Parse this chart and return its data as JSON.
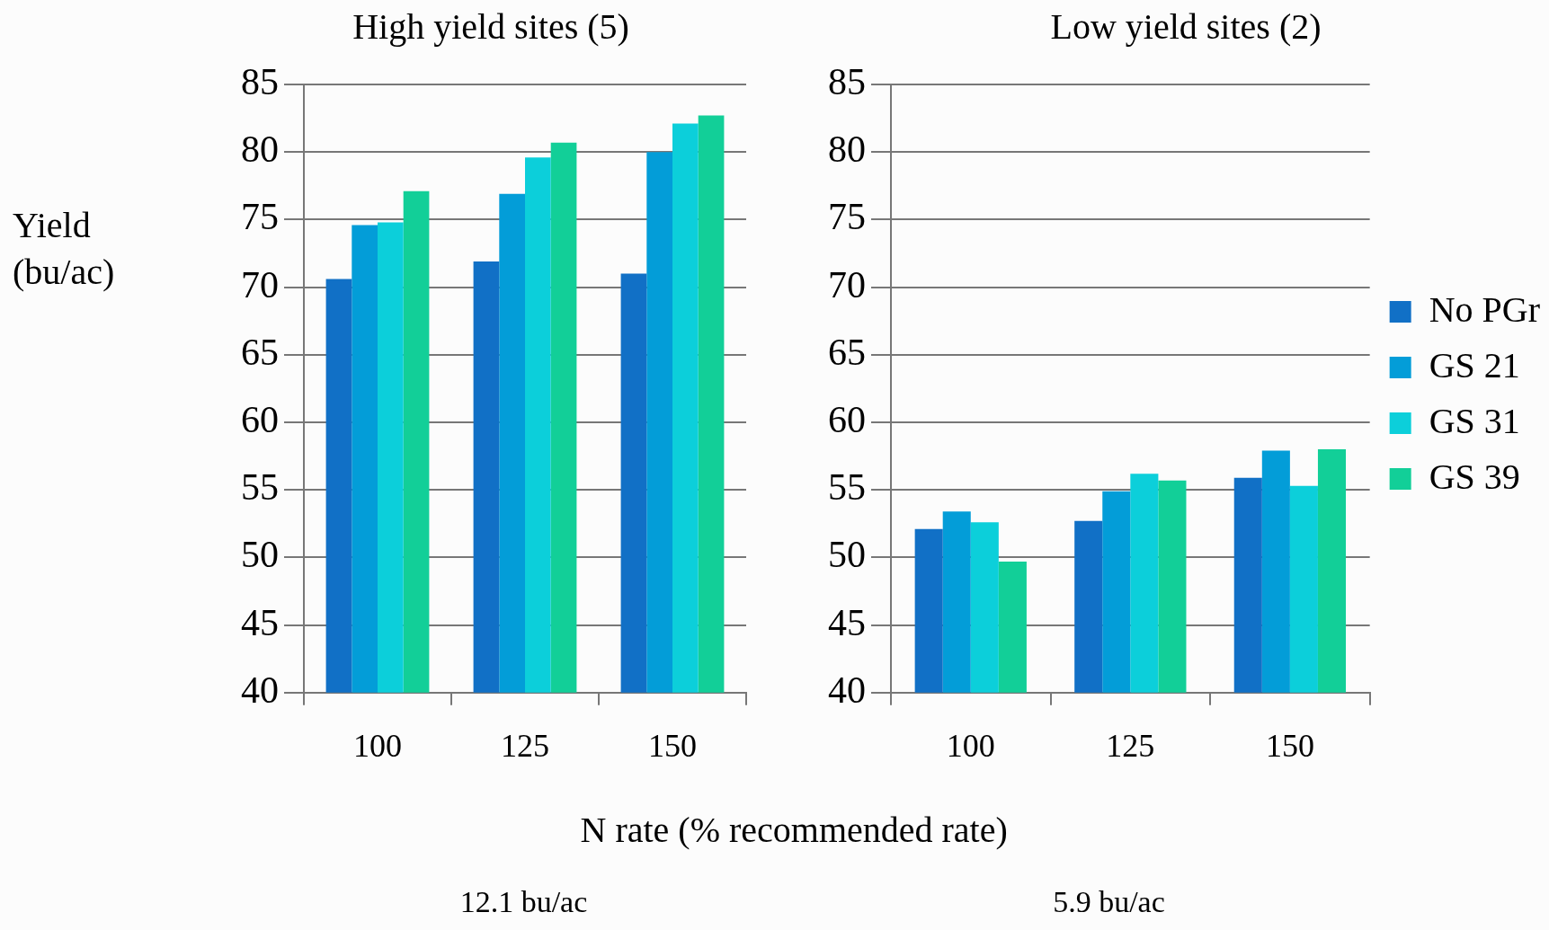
{
  "chart_data": [
    {
      "type": "bar",
      "title": "High yield sites (5)",
      "xlabel": "N rate (% recommended rate)",
      "ylabel": "Yield (bu/ac)",
      "categories": [
        "100",
        "125",
        "150"
      ],
      "series": [
        {
          "color": "#1170c6",
          "values": [
            70.6,
            71.9,
            71.0
          ]
        },
        {
          "color": "#039dd8",
          "values": [
            74.6,
            76.9,
            80.0
          ]
        },
        {
          "color": "#0ccfda",
          "values": [
            74.8,
            79.6,
            82.1
          ]
        },
        {
          "color": "#12cf98",
          "values": [
            77.1,
            80.7,
            82.7
          ]
        }
      ],
      "ylim": [
        40,
        85
      ],
      "yticks": [
        40,
        45,
        50,
        55,
        60,
        65,
        70,
        75,
        80,
        85
      ],
      "grid": "y",
      "legend": false,
      "annotations": [
        "12.1 bu/ac"
      ]
    },
    {
      "type": "bar",
      "title": "Low yield sites (2)",
      "categories": [
        "100",
        "125",
        "150"
      ],
      "series": [
        {
          "name": "No PGr",
          "color": "#1170c6",
          "values": [
            52.1,
            52.7,
            55.9
          ]
        },
        {
          "name": "GS 21",
          "color": "#039dd8",
          "values": [
            53.4,
            54.9,
            57.9
          ]
        },
        {
          "name": "GS 31",
          "color": "#0ccfda",
          "values": [
            52.6,
            56.2,
            55.3
          ]
        },
        {
          "name": "GS 39",
          "color": "#12cf98",
          "values": [
            49.7,
            55.7,
            58.0
          ]
        }
      ],
      "ylim": [
        40,
        85
      ],
      "yticks": [
        40,
        45,
        50,
        55,
        60,
        65,
        70,
        75,
        80,
        85
      ],
      "grid": "y",
      "legend": "right",
      "annotations": [
        "5.9 bu/ac"
      ]
    }
  ]
}
